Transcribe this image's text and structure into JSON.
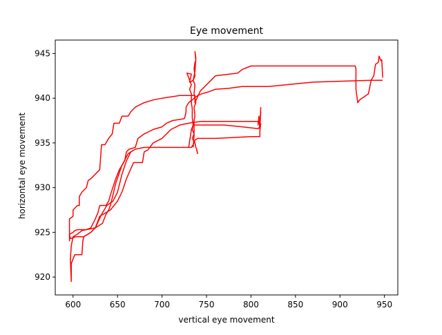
{
  "chart_data": {
    "type": "line",
    "title": "Eye movement",
    "xlabel": "vertical eye movement",
    "ylabel": "horizontal eye movement",
    "xlim": [
      580,
      965
    ],
    "ylim": [
      918,
      946.5
    ],
    "x_ticks": [
      600,
      650,
      700,
      750,
      800,
      850,
      900,
      950
    ],
    "y_ticks": [
      920,
      925,
      930,
      935,
      940,
      945
    ],
    "grid": false,
    "colors": {
      "line": "#ff0000"
    },
    "series": [
      {
        "points": [
          [
            596,
            924.0
          ],
          [
            596,
            926.5
          ],
          [
            600,
            926.8
          ],
          [
            600,
            927.5
          ],
          [
            605,
            928.0
          ],
          [
            607,
            928.0
          ],
          [
            607,
            929.0
          ],
          [
            610,
            929.5
          ],
          [
            615,
            930.0
          ],
          [
            617,
            930.8
          ],
          [
            620,
            931.0
          ],
          [
            625,
            931.5
          ],
          [
            630,
            932.0
          ],
          [
            632,
            934.8
          ],
          [
            636,
            934.8
          ],
          [
            640,
            935.5
          ],
          [
            644,
            936.0
          ],
          [
            646,
            937.2
          ],
          [
            652,
            937.2
          ],
          [
            655,
            938.0
          ],
          [
            662,
            938.0
          ],
          [
            665,
            938.5
          ],
          [
            670,
            939.0
          ],
          [
            680,
            939.5
          ],
          [
            690,
            939.8
          ],
          [
            700,
            940.0
          ],
          [
            720,
            940.3
          ],
          [
            737,
            940.3
          ],
          [
            737,
            939.5
          ],
          [
            743,
            940.8
          ],
          [
            760,
            942.5
          ],
          [
            785,
            942.8
          ],
          [
            790,
            943.2
          ],
          [
            800,
            943.6
          ],
          [
            850,
            943.6
          ],
          [
            917,
            943.6
          ],
          [
            918,
            943.3
          ],
          [
            918,
            941.0
          ],
          [
            920,
            939.5
          ],
          [
            922,
            939.8
          ],
          [
            932,
            940.5
          ],
          [
            935,
            942.0
          ],
          [
            938,
            942.5
          ],
          [
            940,
            943.8
          ],
          [
            943,
            944.0
          ],
          [
            944,
            944.7
          ],
          [
            946,
            944.2
          ],
          [
            947,
            944.3
          ],
          [
            948,
            942.3
          ]
        ]
      },
      {
        "points": [
          [
            948,
            942.0
          ],
          [
            935,
            942.0
          ],
          [
            900,
            941.9
          ],
          [
            870,
            941.8
          ],
          [
            850,
            941.6
          ],
          [
            820,
            941.3
          ],
          [
            790,
            941.3
          ],
          [
            775,
            941.1
          ],
          [
            760,
            941.0
          ],
          [
            752,
            940.7
          ],
          [
            745,
            940.5
          ],
          [
            740,
            940.3
          ],
          [
            735,
            939.9
          ],
          [
            730,
            939.5
          ],
          [
            727,
            939.0
          ],
          [
            727,
            938.5
          ],
          [
            726,
            938.0
          ],
          [
            725,
            937.7
          ],
          [
            712,
            937.5
          ],
          [
            705,
            937.2
          ],
          [
            700,
            936.8
          ],
          [
            690,
            936.5
          ],
          [
            680,
            936.0
          ],
          [
            673,
            935.5
          ],
          [
            670,
            934.5
          ],
          [
            663,
            934.3
          ],
          [
            660,
            934.0
          ],
          [
            658,
            933.0
          ],
          [
            652,
            932.0
          ],
          [
            648,
            931.0
          ],
          [
            643,
            929.5
          ],
          [
            640,
            928.5
          ],
          [
            637,
            928.0
          ],
          [
            630,
            928.0
          ],
          [
            628,
            927.2
          ],
          [
            625,
            926.5
          ],
          [
            620,
            925.5
          ],
          [
            615,
            925.3
          ],
          [
            610,
            925.2
          ],
          [
            605,
            924.8
          ],
          [
            600,
            924.5
          ],
          [
            598,
            923.5
          ],
          [
            597,
            922.0
          ],
          [
            598,
            919.5
          ],
          [
            598,
            921.5
          ],
          [
            602,
            922.5
          ],
          [
            610,
            922.5
          ],
          [
            611,
            924.0
          ],
          [
            612,
            924.5
          ],
          [
            620,
            925.0
          ],
          [
            625,
            925.5
          ],
          [
            630,
            926.8
          ],
          [
            637,
            927.2
          ],
          [
            642,
            927.5
          ],
          [
            650,
            928.5
          ],
          [
            655,
            929.5
          ],
          [
            660,
            931.0
          ],
          [
            668,
            932.8
          ],
          [
            678,
            932.8
          ],
          [
            680,
            934.0
          ],
          [
            684,
            934.2
          ],
          [
            690,
            935.0
          ],
          [
            700,
            935.5
          ],
          [
            710,
            936.5
          ],
          [
            720,
            937.0
          ],
          [
            730,
            937.2
          ],
          [
            735,
            937.3
          ],
          [
            745,
            937.4
          ],
          [
            760,
            937.4
          ],
          [
            800,
            937.4
          ],
          [
            808,
            937.4
          ],
          [
            808,
            937.0
          ],
          [
            809,
            938.0
          ],
          [
            810,
            936.5
          ],
          [
            811,
            939.0
          ]
        ]
      },
      {
        "points": [
          [
            811,
            938.5
          ],
          [
            810,
            936.8
          ],
          [
            808,
            936.6
          ],
          [
            790,
            936.8
          ],
          [
            770,
            937.0
          ],
          [
            745,
            937.0
          ],
          [
            735,
            937.0
          ],
          [
            733,
            936.5
          ],
          [
            732,
            935.8
          ],
          [
            730,
            934.5
          ],
          [
            720,
            934.5
          ],
          [
            700,
            934.5
          ],
          [
            690,
            934.5
          ],
          [
            680,
            934.5
          ],
          [
            670,
            934.3
          ],
          [
            662,
            933.8
          ],
          [
            655,
            932.5
          ],
          [
            648,
            930.5
          ],
          [
            642,
            928.0
          ],
          [
            640,
            927.5
          ],
          [
            637,
            927.0
          ],
          [
            633,
            926.0
          ],
          [
            625,
            925.5
          ],
          [
            615,
            925.3
          ],
          [
            605,
            925.3
          ],
          [
            602,
            925.2
          ],
          [
            600,
            925.0
          ],
          [
            596,
            924.8
          ],
          [
            597,
            924.3
          ],
          [
            603,
            924.5
          ],
          [
            612,
            924.5
          ],
          [
            620,
            925.0
          ],
          [
            625,
            925.5
          ],
          [
            632,
            927.0
          ],
          [
            638,
            928.0
          ],
          [
            645,
            928.5
          ],
          [
            650,
            929.5
          ],
          [
            655,
            931.5
          ],
          [
            660,
            933.0
          ],
          [
            665,
            934.0
          ],
          [
            670,
            934.3
          ],
          [
            680,
            934.5
          ],
          [
            700,
            934.5
          ],
          [
            720,
            934.5
          ],
          [
            733,
            934.5
          ],
          [
            735,
            934.8
          ],
          [
            737,
            935.3
          ],
          [
            740,
            935.5
          ],
          [
            760,
            935.5
          ],
          [
            780,
            935.6
          ],
          [
            800,
            935.7
          ],
          [
            810,
            935.7
          ],
          [
            810,
            936.3
          ],
          [
            811,
            937.2
          ]
        ]
      },
      {
        "points": [
          [
            735,
            934.5
          ],
          [
            736,
            935.8
          ],
          [
            736,
            937.5
          ],
          [
            737,
            938.0
          ],
          [
            736,
            939.0
          ],
          [
            738,
            939.5
          ],
          [
            736,
            940.5
          ],
          [
            737,
            941.5
          ],
          [
            735,
            942.0
          ],
          [
            737,
            942.5
          ],
          [
            736,
            943.3
          ],
          [
            737,
            944.0
          ],
          [
            738,
            944.2
          ],
          [
            737,
            945.2
          ],
          [
            738,
            944.5
          ],
          [
            737,
            943.0
          ],
          [
            735,
            942.0
          ],
          [
            731,
            941.8
          ],
          [
            733,
            942.7
          ],
          [
            728,
            942.8
          ],
          [
            733,
            941.5
          ],
          [
            731,
            941.0
          ],
          [
            733,
            940.5
          ],
          [
            733,
            939.5
          ],
          [
            734,
            938.8
          ],
          [
            734,
            937.8
          ],
          [
            735,
            937.0
          ],
          [
            734,
            936.5
          ],
          [
            736,
            936.0
          ],
          [
            734,
            935.5
          ],
          [
            737,
            935.0
          ],
          [
            738,
            934.5
          ],
          [
            739,
            934.3
          ],
          [
            740,
            933.8
          ],
          [
            739,
            934.2
          ]
        ]
      }
    ]
  }
}
